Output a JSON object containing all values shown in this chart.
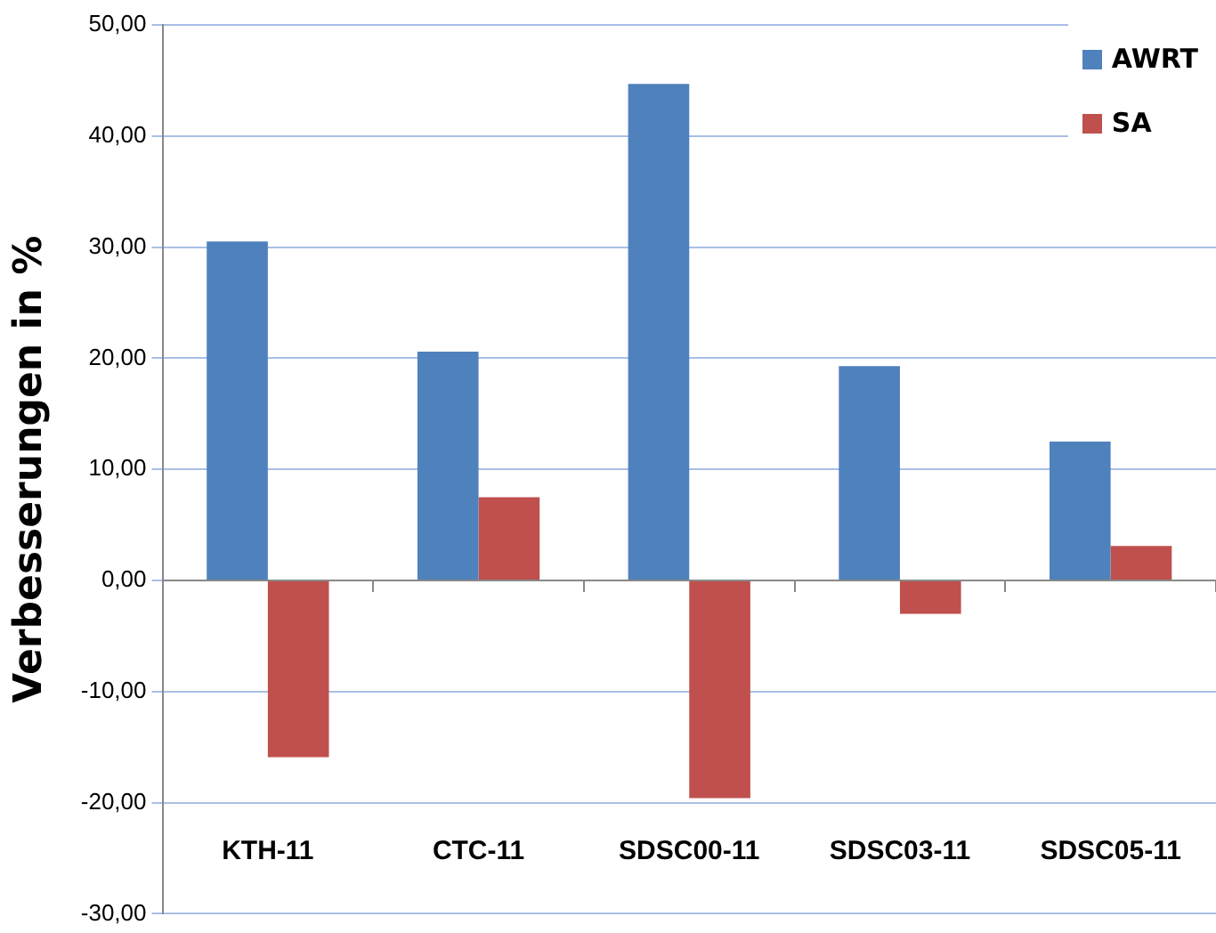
{
  "chart_data": {
    "type": "bar",
    "ylabel": "Verbesserungen in %",
    "categories": [
      "KTH-11",
      "CTC-11",
      "SDSC00-11",
      "SDSC03-11",
      "SDSC05-11"
    ],
    "series": [
      {
        "name": "AWRT",
        "color": "#4f81bd",
        "values": [
          30.5,
          20.6,
          44.7,
          19.3,
          12.5
        ]
      },
      {
        "name": "SA",
        "color": "#c0504d",
        "values": [
          -15.9,
          7.5,
          -19.6,
          -3.0,
          3.1
        ]
      }
    ],
    "ylim": [
      -30,
      50
    ],
    "yticks": [
      {
        "value": -30,
        "label": "-30,00"
      },
      {
        "value": -20,
        "label": "-20,00"
      },
      {
        "value": -10,
        "label": "-10,00"
      },
      {
        "value": 0,
        "label": "0,00"
      },
      {
        "value": 10,
        "label": "10,00"
      },
      {
        "value": 20,
        "label": "20,00"
      },
      {
        "value": 30,
        "label": "30,00"
      },
      {
        "value": 40,
        "label": "40,00"
      },
      {
        "value": 50,
        "label": "50,00"
      }
    ],
    "grid": "y",
    "legend": "top right"
  }
}
